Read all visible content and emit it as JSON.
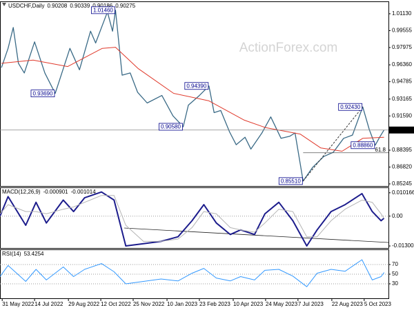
{
  "watermark": "ActionForex.com",
  "chart_data": [
    {
      "type": "line",
      "title": "USDCHF,Daily",
      "ohlc": [
        0.90208,
        0.90339,
        0.90186,
        0.90275
      ],
      "x": [
        "2022-05-30",
        "2022-06-08",
        "2022-06-15",
        "2022-06-22",
        "2022-06-30",
        "2022-07-14",
        "2022-07-28",
        "2022-08-11",
        "2022-08-31",
        "2022-09-13",
        "2022-09-28",
        "2022-10-05",
        "2022-10-21",
        "2022-10-28",
        "2022-11-01",
        "2022-11-10",
        "2022-11-21",
        "2022-12-01",
        "2022-12-14",
        "2023-01-03",
        "2023-01-18",
        "2023-02-01",
        "2023-02-08",
        "2023-02-23",
        "2023-03-08",
        "2023-03-15",
        "2023-03-24",
        "2023-04-05",
        "2023-04-14",
        "2023-04-26",
        "2023-05-04",
        "2023-05-19",
        "2023-05-31",
        "2023-06-14",
        "2023-06-26",
        "2023-07-03",
        "2023-07-14",
        "2023-07-27",
        "2023-08-11",
        "2023-08-24",
        "2023-09-07",
        "2023-09-19",
        "2023-10-03",
        "2023-10-12",
        "2023-10-20",
        "2023-10-26",
        "2023-11-01"
      ],
      "series": [
        {
          "color": "#3a6a86",
          "values": [
            0.961,
            0.979,
            0.9985,
            0.965,
            0.956,
            0.985,
            0.956,
            0.9369,
            0.979,
            0.959,
            0.995,
            0.984,
            1.013,
            0.995,
            1.0146,
            0.954,
            0.956,
            0.938,
            0.928,
            0.935,
            0.916,
            0.9058,
            0.926,
            0.935,
            0.9439,
            0.919,
            0.921,
            0.901,
            0.889,
            0.896,
            0.885,
            0.9,
            0.915,
            0.895,
            0.897,
            0.9,
            0.8551,
            0.868,
            0.878,
            0.882,
            0.895,
            0.898,
            0.9243,
            0.903,
            0.8886,
            0.896,
            0.90275
          ]
        },
        {
          "color": "#e0392b",
          "x": [
            "2022-05-30",
            "2022-07-12",
            "2022-08-28",
            "2022-10-14",
            "2022-11-01",
            "2022-12-02",
            "2023-01-19",
            "2023-03-08",
            "2023-04-25",
            "2023-05-24",
            "2023-07-10",
            "2023-08-07",
            "2023-09-05",
            "2023-10-03",
            "2023-11-01"
          ],
          "values": [
            0.965,
            0.968,
            0.962,
            0.979,
            0.98,
            0.96,
            0.937,
            0.93,
            0.912,
            0.905,
            0.899,
            0.886,
            0.883,
            0.895,
            0.896
          ]
        }
      ],
      "annotations": [
        {
          "x": "2022-11-01",
          "value": 1.0146,
          "label": "1.01460"
        },
        {
          "x": "2022-08-11",
          "value": 0.9369,
          "label": "0.93690"
        },
        {
          "x": "2023-03-08",
          "value": 0.9439,
          "label": "0.94390"
        },
        {
          "x": "2023-02-01",
          "value": 0.9058,
          "label": "0.90580"
        },
        {
          "x": "2023-07-14",
          "value": 0.8551,
          "label": "0.85510"
        },
        {
          "x": "2023-10-03",
          "value": 0.9243,
          "label": "0.92430"
        },
        {
          "x": "2023-10-20",
          "value": 0.8886,
          "label": "0.88860"
        }
      ],
      "fib": {
        "level": 61.8
      },
      "ylim": [
        0.8505,
        1.0222
      ],
      "yticks": [
        {
          "value": 1.0113,
          "label": "1.01130"
        },
        0.99555,
        0.97975,
        {
          "value": 0.9636,
          "label": "0.96360"
        },
        0.94785,
        0.93165,
        {
          "value": 0.9159,
          "label": "0.91590"
        },
        0.88395,
        {
          "value": 0.8682,
          "label": "0.86820"
        },
        0.85245
      ]
    },
    {
      "type": "line",
      "title": "MACD(12,26,9)",
      "x": [
        "2022-05-28",
        "2022-06-08",
        "2022-07-02",
        "2022-07-16",
        "2022-07-30",
        "2022-08-22",
        "2022-09-05",
        "2022-09-20",
        "2022-10-13",
        "2022-10-30",
        "2022-11-15",
        "2022-12-09",
        "2023-01-02",
        "2023-01-25",
        "2023-02-13",
        "2023-03-01",
        "2023-03-18",
        "2023-04-06",
        "2023-04-20",
        "2023-05-09",
        "2023-05-23",
        "2023-06-11",
        "2023-06-30",
        "2023-07-19",
        "2023-08-02",
        "2023-08-21",
        "2023-09-09",
        "2023-10-02",
        "2023-10-16",
        "2023-10-28",
        "2023-11-01"
      ],
      "series": [
        {
          "color": "#1c1c8c",
          "values": [
            0.0,
            0.0085,
            -0.004,
            0.006,
            -0.003,
            0.007,
            0.002,
            0.008,
            0.0105,
            0.007,
            -0.013,
            -0.012,
            -0.011,
            -0.009,
            -0.002,
            0.005,
            -0.003,
            -0.008,
            -0.006,
            -0.008,
            0.001,
            0.006,
            -0.002,
            -0.013,
            -0.006,
            0.002,
            0.005,
            0.0098,
            0.002,
            -0.002,
            -0.000901
          ]
        },
        {
          "color": "#b4b4b4",
          "values": [
            0.001,
            0.005,
            0.002,
            0.002,
            0.001,
            0.003,
            0.004,
            0.006,
            0.009,
            0.009,
            -0.004,
            -0.011,
            -0.011,
            -0.01,
            -0.005,
            0.002,
            0.001,
            -0.005,
            -0.006,
            -0.007,
            -0.003,
            0.003,
            0.002,
            -0.009,
            -0.009,
            -0.002,
            0.003,
            0.007,
            0.006,
            0.001,
            -0.001014
          ]
        }
      ],
      "ylim": [
        -0.01389,
        0.01222
      ],
      "yticks": [
        0.010166,
        {
          "value": 0,
          "label": "0.00"
        },
        -0.013006
      ]
    },
    {
      "type": "line",
      "title": "RSI(14)",
      "x": [
        "2022-05-28",
        "2022-06-08",
        "2022-07-02",
        "2022-07-16",
        "2022-07-30",
        "2022-08-22",
        "2022-09-05",
        "2022-09-20",
        "2022-10-13",
        "2022-10-30",
        "2022-11-15",
        "2022-12-09",
        "2023-01-02",
        "2023-01-25",
        "2023-02-13",
        "2023-03-01",
        "2023-03-18",
        "2023-04-06",
        "2023-04-20",
        "2023-05-09",
        "2023-05-23",
        "2023-06-11",
        "2023-06-30",
        "2023-07-19",
        "2023-08-02",
        "2023-08-21",
        "2023-09-09",
        "2023-10-02",
        "2023-10-16",
        "2023-10-28",
        "2023-11-01"
      ],
      "series": [
        {
          "color": "#3399ff",
          "values": [
            45,
            68,
            35,
            60,
            38,
            65,
            45,
            60,
            72,
            55,
            30,
            35,
            40,
            36,
            52,
            62,
            42,
            36,
            45,
            38,
            58,
            60,
            46,
            24,
            52,
            60,
            56,
            80,
            38,
            45,
            53.4254
          ]
        }
      ],
      "ylim": [
        0,
        100
      ],
      "yticks": [
        70,
        50,
        30
      ],
      "grid": "dotted",
      "xlim": [
        "2022-05-28",
        "2023-11-07"
      ],
      "xticks": [
        {
          "value": "2022-05-31",
          "label": "31 May 2022"
        },
        {
          "value": "2022-07-14",
          "label": "14 Jul 2022"
        },
        {
          "value": "2022-08-29",
          "label": "29 Aug 2022"
        },
        {
          "value": "2022-10-12",
          "label": "12 Oct 2022"
        },
        {
          "value": "2022-11-25",
          "label": "25 Nov 2022"
        },
        {
          "value": "2023-01-10",
          "label": "10 Jan 2023"
        },
        {
          "value": "2023-02-23",
          "label": "23 Feb 2023"
        },
        {
          "value": "2023-04-10",
          "label": "10 Apr 2023"
        },
        {
          "value": "2023-05-24",
          "label": "24 May 2023"
        },
        {
          "value": "2023-07-07",
          "label": "7 Jul 2023"
        },
        {
          "value": "2023-08-22",
          "label": "22 Aug 2023"
        },
        {
          "value": "2023-10-05",
          "label": "5 Oct 2023"
        }
      ]
    }
  ]
}
